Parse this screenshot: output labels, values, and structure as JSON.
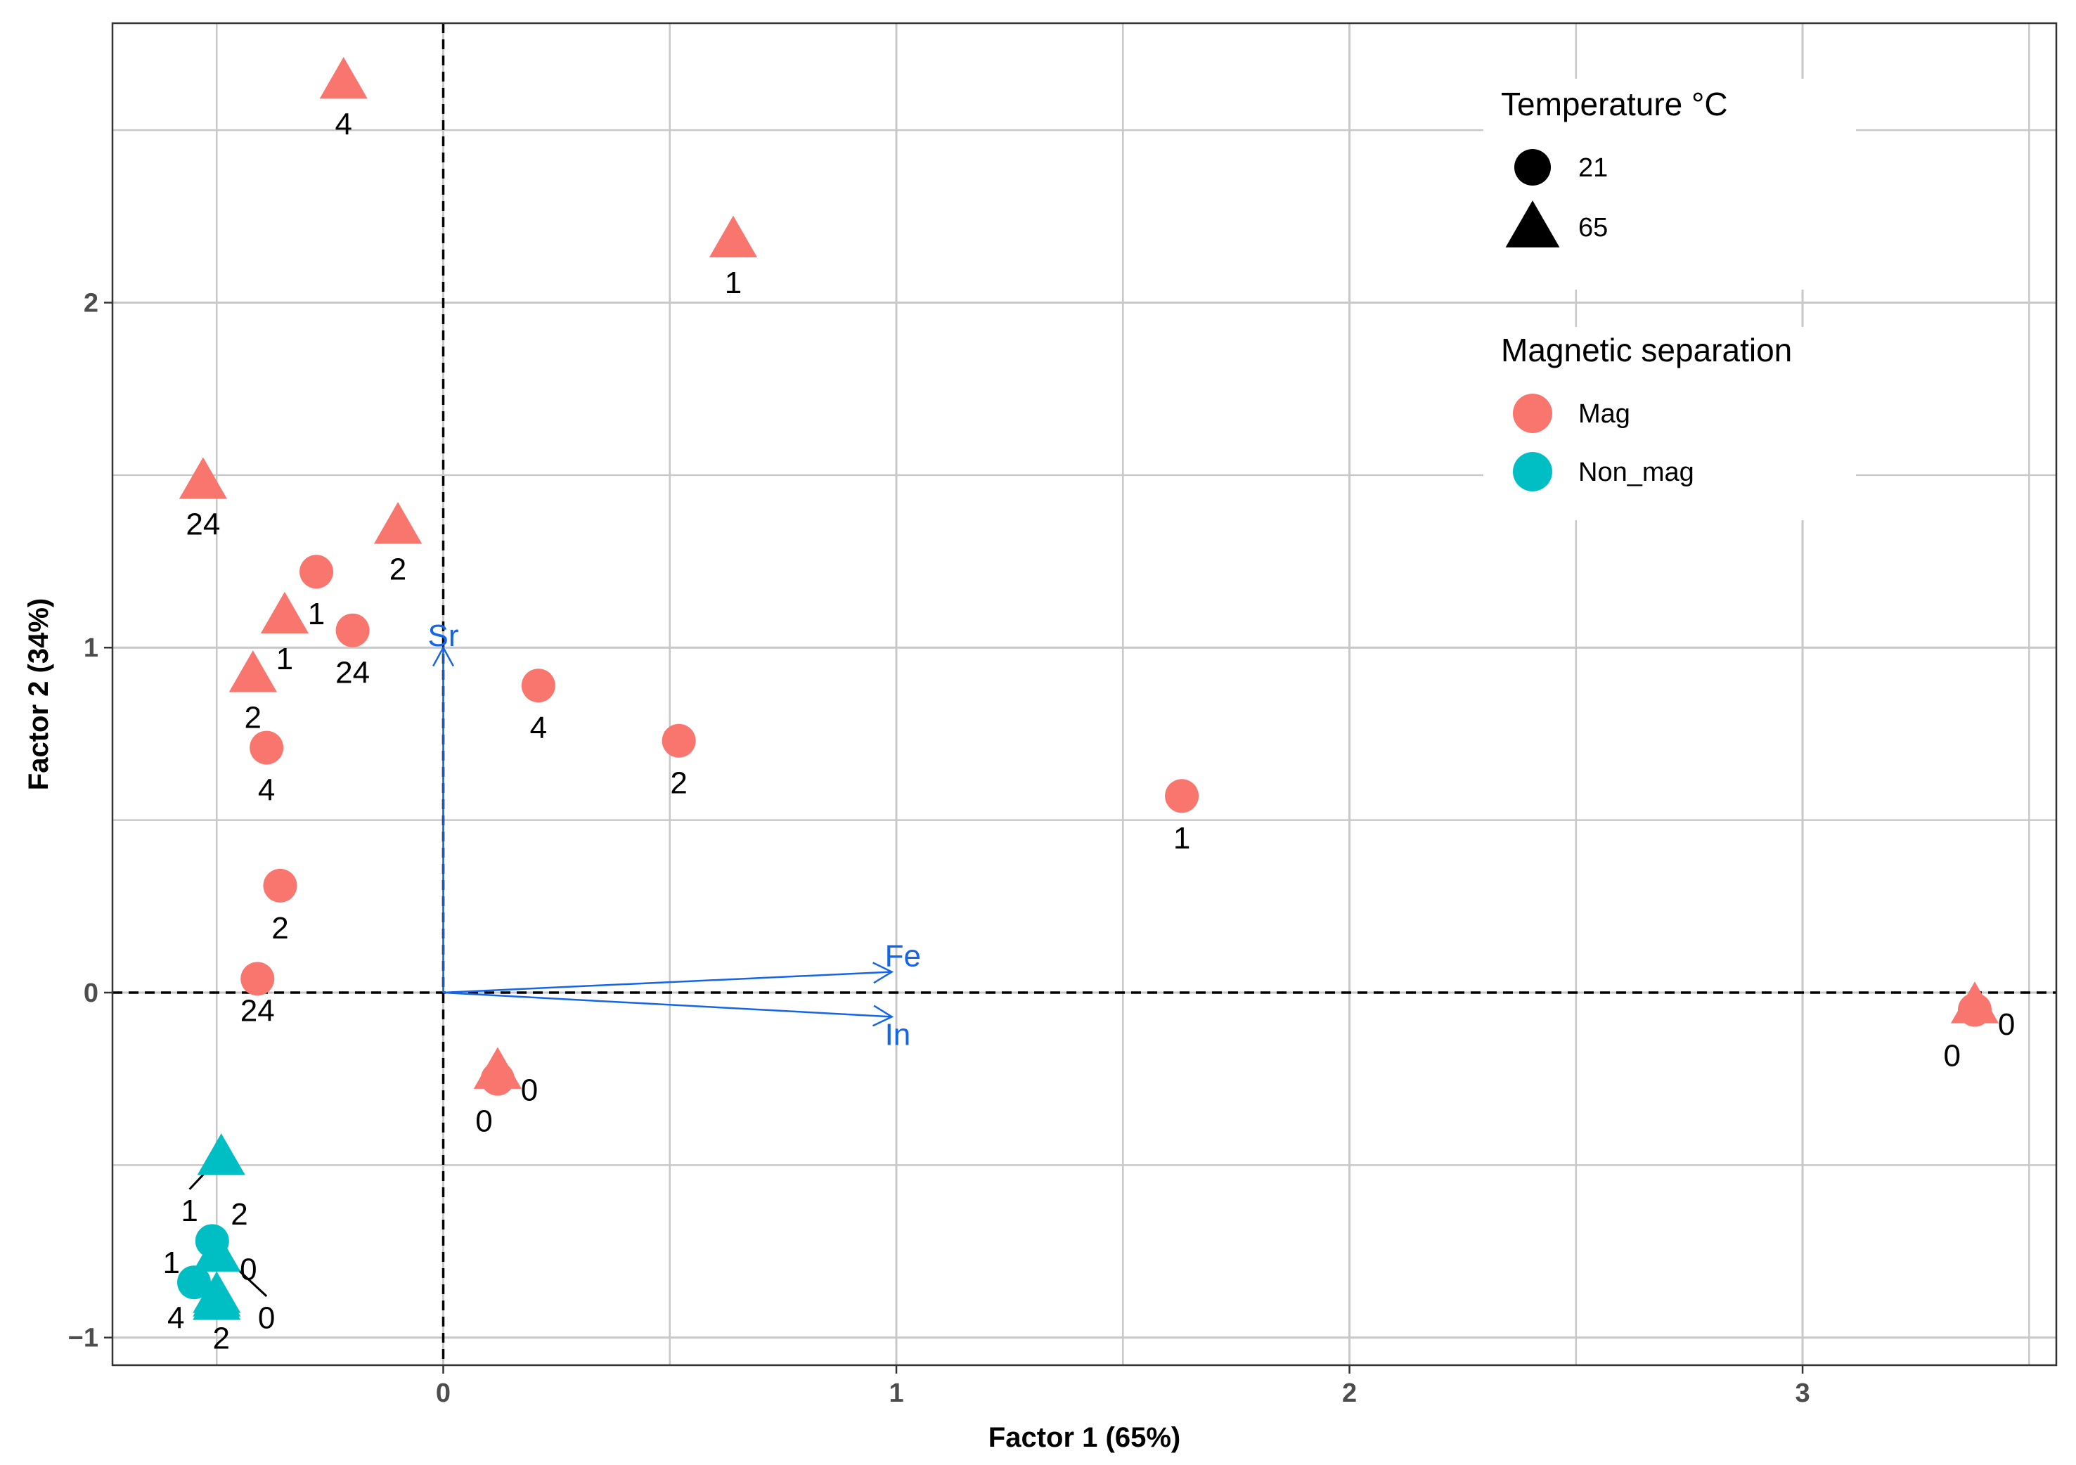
{
  "chart_data": {
    "type": "scatter",
    "xlabel": "Factor 1 (65%)",
    "ylabel": "Factor 2 (34%)",
    "xlim": [
      -0.73,
      3.56
    ],
    "ylim": [
      -1.08,
      2.81
    ],
    "x_ticks": [
      0,
      1,
      2,
      3
    ],
    "y_ticks": [
      -1,
      0,
      1,
      2
    ],
    "grid": true,
    "reference_lines": {
      "x": 0,
      "y": 0,
      "style": "dashed"
    },
    "legend_position": "top-right",
    "colors": {
      "Mag": "#F8766D",
      "Non_mag": "#00BFC4",
      "vector": "#1565E8"
    },
    "legends": [
      {
        "title": "Temperature °C",
        "entries": [
          {
            "label": "21",
            "shape": "circle"
          },
          {
            "label": "65",
            "shape": "triangle"
          }
        ]
      },
      {
        "title": "Magnetic separation",
        "entries": [
          {
            "label": "Mag",
            "color": "#F8766D"
          },
          {
            "label": "Non_mag",
            "color": "#00BFC4"
          }
        ]
      }
    ],
    "vectors": [
      {
        "name": "Sr",
        "x": 0.0,
        "y": 1.0
      },
      {
        "name": "Fe",
        "x": 0.99,
        "y": 0.06
      },
      {
        "name": "In",
        "x": 0.99,
        "y": -0.07
      }
    ],
    "points": [
      {
        "group": "Mag",
        "temp": "65",
        "x": -0.22,
        "y": 2.64,
        "label": "4",
        "lx": -0.22,
        "ly": 2.52
      },
      {
        "group": "Mag",
        "temp": "65",
        "x": 0.64,
        "y": 2.18,
        "label": "1",
        "lx": 0.64,
        "ly": 2.06
      },
      {
        "group": "Mag",
        "temp": "65",
        "x": -0.53,
        "y": 1.48,
        "label": "24",
        "lx": -0.53,
        "ly": 1.36
      },
      {
        "group": "Mag",
        "temp": "65",
        "x": -0.1,
        "y": 1.35,
        "label": "2",
        "lx": -0.1,
        "ly": 1.23
      },
      {
        "group": "Mag",
        "temp": "21",
        "x": -0.28,
        "y": 1.22,
        "label": "1",
        "lx": -0.28,
        "ly": 1.1
      },
      {
        "group": "Mag",
        "temp": "65",
        "x": -0.35,
        "y": 1.09,
        "label": "1",
        "lx": -0.35,
        "ly": 0.97
      },
      {
        "group": "Mag",
        "temp": "21",
        "x": -0.2,
        "y": 1.05,
        "label": "24",
        "lx": -0.2,
        "ly": 0.93
      },
      {
        "group": "Mag",
        "temp": "65",
        "x": -0.42,
        "y": 0.92,
        "label": "2",
        "lx": -0.42,
        "ly": 0.8
      },
      {
        "group": "Mag",
        "temp": "21",
        "x": 0.21,
        "y": 0.89,
        "label": "4",
        "lx": 0.21,
        "ly": 0.77
      },
      {
        "group": "Mag",
        "temp": "21",
        "x": 0.52,
        "y": 0.73,
        "label": "2",
        "lx": 0.52,
        "ly": 0.61
      },
      {
        "group": "Mag",
        "temp": "21",
        "x": -0.39,
        "y": 0.71,
        "label": "4",
        "lx": -0.39,
        "ly": 0.59
      },
      {
        "group": "Mag",
        "temp": "21",
        "x": 1.63,
        "y": 0.57,
        "label": "1",
        "lx": 1.63,
        "ly": 0.45
      },
      {
        "group": "Mag",
        "temp": "21",
        "x": -0.36,
        "y": 0.31,
        "label": "2",
        "lx": -0.36,
        "ly": 0.19
      },
      {
        "group": "Mag",
        "temp": "21",
        "x": -0.41,
        "y": 0.04,
        "label": "24",
        "lx": -0.41,
        "ly": -0.05
      },
      {
        "group": "Mag",
        "temp": "65",
        "x": 3.38,
        "y": -0.04,
        "label": "0",
        "lx": 3.45,
        "ly": -0.09
      },
      {
        "group": "Mag",
        "temp": "21",
        "x": 3.38,
        "y": -0.05,
        "label": "0",
        "lx": 3.33,
        "ly": -0.18
      },
      {
        "group": "Mag",
        "temp": "65",
        "x": 0.12,
        "y": -0.23,
        "label": "0",
        "lx": 0.19,
        "ly": -0.28
      },
      {
        "group": "Mag",
        "temp": "21",
        "x": 0.12,
        "y": -0.25,
        "label": "0",
        "lx": 0.09,
        "ly": -0.37
      },
      {
        "group": "Non_mag",
        "temp": "65",
        "x": -0.49,
        "y": -0.48,
        "label": "1",
        "lx": -0.56,
        "ly": -0.63
      },
      {
        "group": "Non_mag",
        "temp": "21",
        "x": -0.51,
        "y": -0.72,
        "label": "2",
        "lx": -0.45,
        "ly": -0.64
      },
      {
        "group": "Non_mag",
        "temp": "65",
        "x": -0.5,
        "y": -0.76,
        "label": "0",
        "lx": -0.43,
        "ly": -0.8
      },
      {
        "group": "Non_mag",
        "temp": "21",
        "x": -0.55,
        "y": -0.84,
        "label": "1",
        "lx": -0.6,
        "ly": -0.78
      },
      {
        "group": "Non_mag",
        "temp": "65",
        "x": -0.5,
        "y": -0.88,
        "label": "0",
        "lx": -0.39,
        "ly": -0.94
      },
      {
        "group": "Non_mag",
        "temp": "65",
        "x": -0.5,
        "y": -0.89,
        "label": "4",
        "lx": -0.59,
        "ly": -0.94
      },
      {
        "group": "Non_mag",
        "temp": "65",
        "x": -0.5,
        "y": -0.9,
        "label": "2",
        "lx": -0.49,
        "ly": -1.0
      }
    ],
    "leader_lines": [
      {
        "x1": -0.56,
        "y1": -0.57,
        "x2": -0.51,
        "y2": -0.5
      },
      {
        "x1": -0.48,
        "y1": -0.77,
        "x2": -0.39,
        "y2": -0.88
      }
    ]
  }
}
